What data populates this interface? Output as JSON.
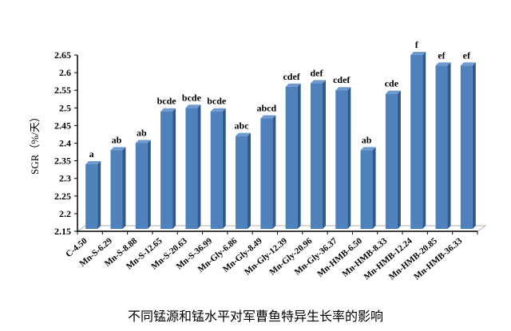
{
  "chart_data": {
    "type": "bar",
    "title": "不同锰源和锰水平对军曹鱼特异生长率的影响",
    "xlabel": "",
    "ylabel": "SGR（%/天）",
    "ylim": [
      2.15,
      2.65
    ],
    "yticks": [
      "2.15",
      "2.2",
      "2.25",
      "2.3",
      "2.35",
      "2.4",
      "2.45",
      "2.5",
      "2.55",
      "2.6",
      "2.65"
    ],
    "grid": false,
    "categories": [
      "C-4.50",
      "Mn-S-6.29",
      "Mn-S-8.88",
      "Mn-S-12.65",
      "Mn-S-20.63",
      "Mn-S-36.99",
      "Mn-Gly-6.86",
      "Mn-Gly-8.49",
      "Mn-Gly-12.39",
      "Mn-Gly-20.96",
      "Mn-Gly-36.37",
      "Mn-HMB-6.50",
      "Mn-HMB-8.33",
      "Mn-HMB-12.24",
      "Mn-HMB-20.85",
      "Mn-HMB-36.33"
    ],
    "values": [
      2.34,
      2.38,
      2.4,
      2.49,
      2.5,
      2.49,
      2.42,
      2.47,
      2.56,
      2.57,
      2.55,
      2.38,
      2.54,
      2.65,
      2.62,
      2.62
    ],
    "data_labels": [
      "a",
      "ab",
      "ab",
      "bcde",
      "bcde",
      "bcde",
      "abc",
      "abcd",
      "cdef",
      "def",
      "cdef",
      "ab",
      "cde",
      "f",
      "ef",
      "ef"
    ],
    "colors": {
      "bar_front": "#4F81BD",
      "bar_side": "#2E5A8E",
      "bar_top": "#6E9AD0"
    }
  }
}
